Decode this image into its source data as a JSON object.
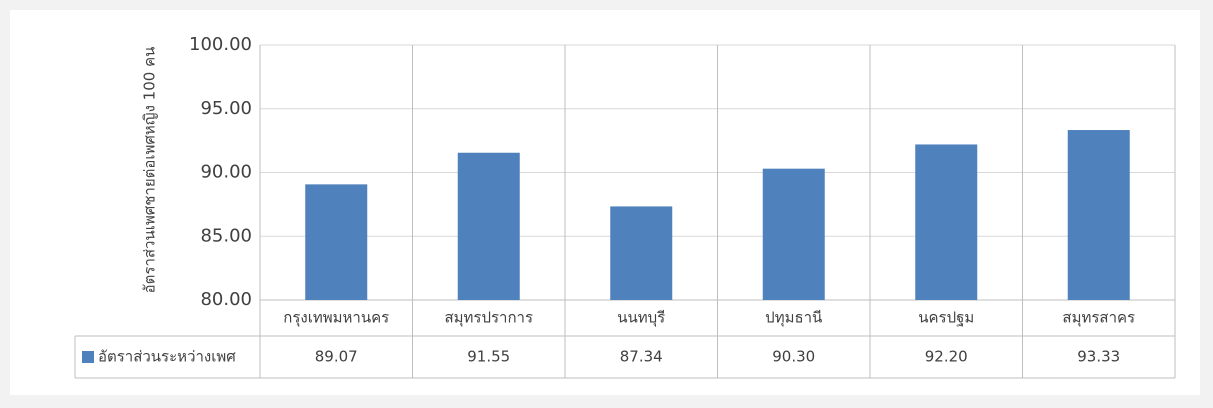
{
  "chart_data": {
    "type": "bar",
    "y_label": "อัตราส่วนเพศชายต่อเพศหญิง 100 คน",
    "categories": [
      "กรุงเทพมหานคร",
      "สมุทรปราการ",
      "นนทบุรี",
      "ปทุมธานี",
      "นครปฐม",
      "สมุทรสาคร"
    ],
    "series": [
      {
        "name": "อัตราส่วนระหว่างเพศ",
        "color": "#4f81bd",
        "values": [
          89.07,
          91.55,
          87.34,
          90.3,
          92.2,
          93.33
        ],
        "value_labels": [
          "89.07",
          "91.55",
          "87.34",
          "90.30",
          "92.20",
          "93.33"
        ]
      }
    ],
    "ylim": [
      80,
      100
    ],
    "yticks": [
      {
        "value": 80,
        "label": "80.00"
      },
      {
        "value": 85,
        "label": "85.00"
      },
      {
        "value": 90,
        "label": "90.00"
      },
      {
        "value": 95,
        "label": "95.00"
      },
      {
        "value": 100,
        "label": "100.00"
      }
    ],
    "grid": true,
    "legend": "table"
  }
}
